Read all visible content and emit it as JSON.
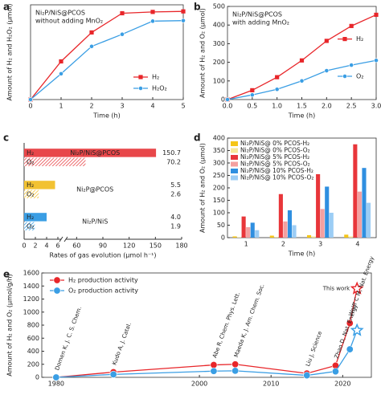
{
  "chart_data": [
    {
      "type": "line",
      "panel_label": "a",
      "annotation": [
        "Ni₂P/NiS@PCOS",
        "without adding MnO₂"
      ],
      "xlabel": "Time (h)",
      "ylabel": "Amount of H₂ and H₂O₂ (μmol)",
      "x": [
        0,
        1,
        2,
        3,
        4,
        5
      ],
      "xlim": [
        0,
        5
      ],
      "xticks": [
        0,
        1,
        2,
        3,
        4,
        5
      ],
      "ylim": [
        0,
        360
      ],
      "series": [
        {
          "name": "H₂",
          "color": "#e8262a",
          "marker": "square",
          "values": [
            0,
            145,
            255,
            328,
            333,
            335
          ]
        },
        {
          "name": "H₂O₂",
          "color": "#3a9ee4",
          "marker": "circle",
          "values": [
            0,
            98,
            202,
            248,
            298,
            300
          ]
        }
      ],
      "legend": "lower right"
    },
    {
      "type": "line",
      "panel_label": "b",
      "annotation": [
        "Ni₂P/NiS@PCOS",
        "with adding MnO₂"
      ],
      "xlabel": "Time (h)",
      "ylabel": "Amount of H₂ and O₂ (μmol)",
      "x": [
        0,
        0.5,
        1,
        1.5,
        2,
        2.5,
        3
      ],
      "xlim": [
        0,
        3
      ],
      "xticks": [
        {
          "value": 0,
          "label": "0.0"
        },
        0.5,
        {
          "value": 1,
          "label": "1.0"
        },
        1.5,
        {
          "value": 2,
          "label": "2.0"
        },
        2.5,
        {
          "value": 3,
          "label": "3.0"
        }
      ],
      "ylim": [
        0,
        500
      ],
      "yticks": [
        0,
        100,
        200,
        300,
        400,
        500
      ],
      "series": [
        {
          "name": "H₂",
          "color": "#e8262a",
          "marker": "square",
          "values": [
            0,
            50,
            120,
            210,
            315,
            395,
            455
          ]
        },
        {
          "name": "O₂",
          "color": "#3a9ee4",
          "marker": "circle",
          "values": [
            0,
            25,
            55,
            100,
            155,
            185,
            210
          ]
        }
      ],
      "legend": "center right"
    },
    {
      "type": "hbar",
      "panel_label": "c",
      "xlabel": "Rates of gas evolution (μmol h⁻¹)",
      "xlim": [
        0,
        180
      ],
      "xticks": [
        0,
        2,
        4,
        6,
        60,
        90,
        120,
        150,
        180
      ],
      "broken_axis": true,
      "bar_labels": [
        "H₂",
        "O₂"
      ],
      "groups": [
        {
          "name": "Ni₂P/NiS@PCOS",
          "color": "#e8474a",
          "values": [
            150.7,
            70.2
          ]
        },
        {
          "name": "Ni₂P@PCOS",
          "color": "#f2c232",
          "values": [
            5.5,
            2.6
          ]
        },
        {
          "name": "Ni₂P/NiS",
          "color": "#3a9ee4",
          "values": [
            4,
            1.9
          ],
          "value_labels": [
            "4.0",
            "1.9"
          ]
        }
      ]
    },
    {
      "type": "bar",
      "panel_label": "d",
      "xlabel": "Time (h)",
      "ylabel": "Amount of H₂ and O₂ (μmol)",
      "categories": [
        "1",
        "2",
        "3",
        "4"
      ],
      "ylim": [
        0,
        400
      ],
      "yticks": [
        0,
        50,
        100,
        150,
        200,
        250,
        300,
        350,
        400
      ],
      "legend": "upper left",
      "series": [
        {
          "name": "Ni₂P/NiS@ 0% PCOS-H₂",
          "color": "#f5c518",
          "values": [
            5,
            8,
            10,
            12
          ]
        },
        {
          "name": "Ni₂P/NiS@ 0% PCOS-O₂",
          "color": "#f7e79a",
          "values": [
            2,
            3,
            5,
            5
          ]
        },
        {
          "name": "Ni₂P/NiS@ 5% PCOS-H₂",
          "color": "#e8363a",
          "values": [
            85,
            175,
            255,
            375
          ]
        },
        {
          "name": "Ni₂P/NiS@ 5% PCOS-O₂",
          "color": "#f4a0a0",
          "values": [
            42,
            65,
            115,
            185
          ]
        },
        {
          "name": "Ni₂P/NiS@ 10% PCOS-H₂",
          "color": "#2f8fe0",
          "values": [
            60,
            110,
            205,
            280
          ]
        },
        {
          "name": "Ni₂P/NiS@ 10% PCOS-O₂",
          "color": "#9ccdf5",
          "values": [
            30,
            50,
            100,
            140
          ]
        }
      ]
    },
    {
      "type": "line",
      "panel_label": "e",
      "ylabel": "Amount of H₂ and O₂ (μmol/g/h)",
      "x": [
        1980,
        1988,
        2002,
        2005,
        2015,
        2019,
        2021,
        2022
      ],
      "xlim": [
        1978,
        2024
      ],
      "xticks": [
        1980,
        2000,
        2010,
        2020
      ],
      "ylim": [
        0,
        1600
      ],
      "yticks": [
        0,
        200,
        400,
        600,
        800,
        1000,
        1200,
        1400,
        1600
      ],
      "point_labels": [
        "Domen K, J. C. S. Chem.",
        "Kudo A, J. Catal.",
        "Abe R, Chem. Phys. Lett.",
        "Maeda K, J. Am. Chem. Soc.",
        "Liu J, Science",
        "Zhao D, Nat. Energy",
        "Wolff C M, Nat. Energy",
        "This work"
      ],
      "last_marker": "star",
      "series": [
        {
          "name": "H₂ production activity",
          "color": "#e8262a",
          "marker": "circle",
          "values": [
            0,
            80,
            190,
            200,
            60,
            180,
            830,
            1360
          ]
        },
        {
          "name": "O₂ production activity",
          "color": "#3a9ee4",
          "marker": "circle",
          "values": [
            0,
            45,
            95,
            100,
            30,
            90,
            430,
            720
          ]
        }
      ],
      "legend": "upper left"
    }
  ]
}
